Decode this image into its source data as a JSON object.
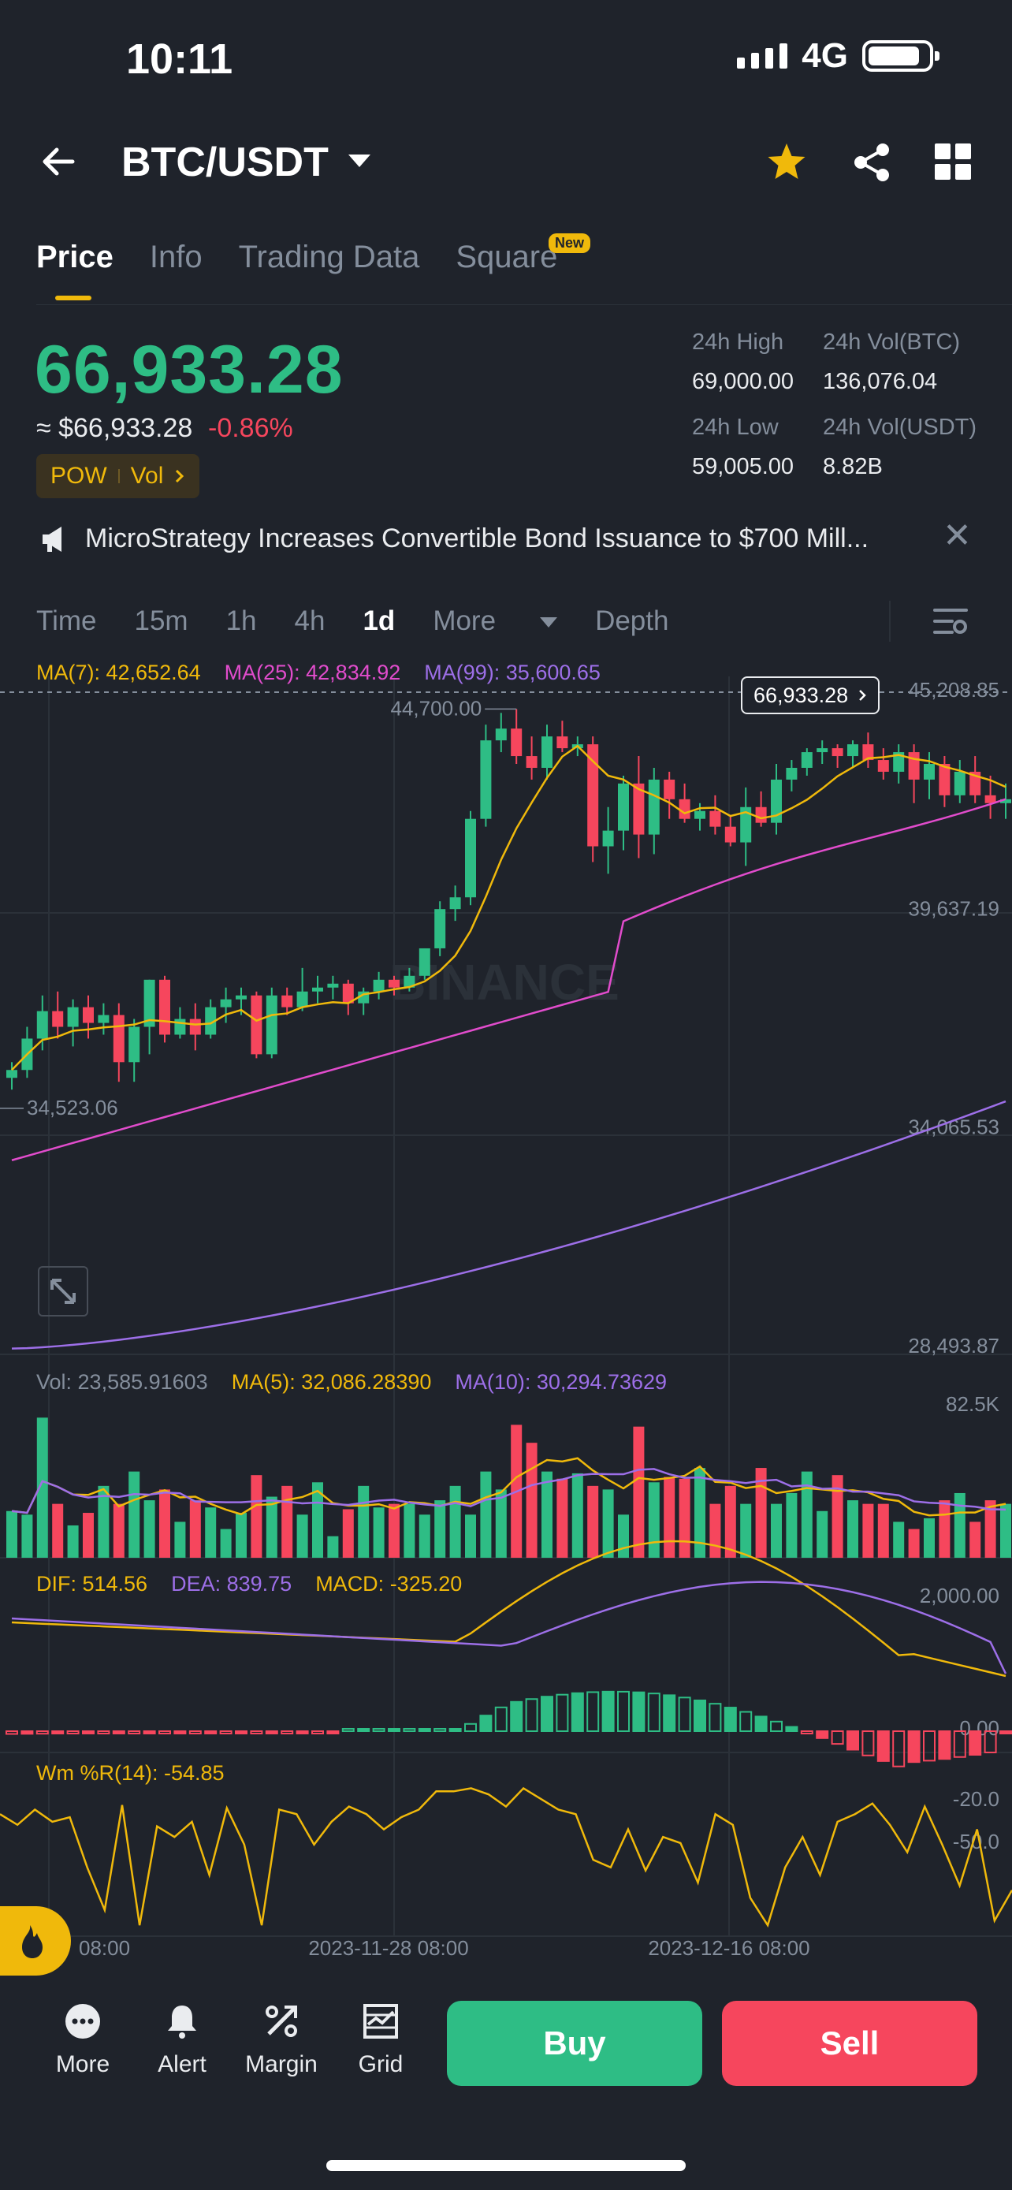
{
  "status_bar": {
    "time": "10:11",
    "network": "4G"
  },
  "header": {
    "pair": "BTC/USDT"
  },
  "tabs": [
    {
      "label": "Price",
      "active": true
    },
    {
      "label": "Info"
    },
    {
      "label": "Trading Data"
    },
    {
      "label": "Square",
      "badge": "New"
    }
  ],
  "price": {
    "last": "66,933.28",
    "usd": "≈ $66,933.28",
    "change": "-0.86%",
    "badge_a": "POW",
    "badge_b": "Vol"
  },
  "stats": {
    "high_label": "24h High",
    "high": "69,000.00",
    "low_label": "24h Low",
    "low": "59,005.00",
    "vol_btc_label": "24h Vol(BTC)",
    "vol_btc": "136,076.04",
    "vol_usdt_label": "24h Vol(USDT)",
    "vol_usdt": "8.82B"
  },
  "news": {
    "text": "MicroStrategy Increases Convertible Bond Issuance to $700 Mill..."
  },
  "intervals": {
    "time": "Time",
    "i15m": "15m",
    "i1h": "1h",
    "i4h": "4h",
    "i1d": "1d",
    "more": "More",
    "depth": "Depth",
    "selected": "1d"
  },
  "colors": {
    "up": "#2ebd85",
    "down": "#f6465d",
    "accent": "#f0b90b",
    "ma7": "#f0b90b",
    "ma25": "#e14ccc",
    "ma99": "#9d6fe8",
    "bg": "#1f232b"
  },
  "icons": [
    "back-arrow-icon",
    "caret-down-icon",
    "star-icon",
    "share-icon",
    "grid-icon",
    "megaphone-icon",
    "close-icon",
    "chart-settings-icon",
    "expand-icon",
    "fire-icon",
    "more-icon",
    "alert-bell-icon",
    "margin-icon",
    "grid-bot-icon"
  ],
  "chart_data": {
    "type": "candlestick",
    "watermark": "BINANCE",
    "ma_legend": {
      "ma7": "MA(7): 42,652.64",
      "ma25": "MA(25): 42,834.92",
      "ma99": "MA(99): 35,600.65"
    },
    "y_ticks": [
      "45,208.85",
      "39,637.19",
      "34,065.53",
      "28,493.87"
    ],
    "last_price_tag": "66,933.28",
    "high_marker": "44,700.00",
    "low_marker": "34,523.06",
    "x_ticks": [
      "08:00",
      "2023-11-28 08:00",
      "2023-12-16 08:00"
    ],
    "candles": [
      [
        35300,
        35700,
        35000,
        35500
      ],
      [
        35500,
        36600,
        35300,
        36300
      ],
      [
        36300,
        37400,
        36000,
        37000
      ],
      [
        37000,
        37500,
        36300,
        36600
      ],
      [
        36600,
        37300,
        36100,
        37100
      ],
      [
        37100,
        37400,
        36300,
        36700
      ],
      [
        36700,
        37200,
        36400,
        36900
      ],
      [
        36900,
        37200,
        35200,
        35700
      ],
      [
        35700,
        36800,
        35200,
        36600
      ],
      [
        36600,
        37800,
        35900,
        37800
      ],
      [
        37800,
        37900,
        36200,
        36400
      ],
      [
        36400,
        37100,
        36300,
        36800
      ],
      [
        36800,
        37200,
        36000,
        36400
      ],
      [
        36400,
        37300,
        36300,
        37100
      ],
      [
        37100,
        37600,
        36700,
        37300
      ],
      [
        37300,
        37600,
        36900,
        37400
      ],
      [
        37400,
        37500,
        35800,
        35900
      ],
      [
        35900,
        37600,
        35800,
        37400
      ],
      [
        37400,
        37600,
        36900,
        37100
      ],
      [
        37100,
        38100,
        37000,
        37500
      ],
      [
        37500,
        37900,
        37200,
        37600
      ],
      [
        37600,
        37900,
        37300,
        37700
      ],
      [
        37700,
        37800,
        36900,
        37200
      ],
      [
        37200,
        37600,
        36900,
        37500
      ],
      [
        37500,
        38000,
        37300,
        37800
      ],
      [
        37800,
        37900,
        37400,
        37600
      ],
      [
        37600,
        38100,
        37500,
        37900
      ],
      [
        37900,
        38600,
        37800,
        38600
      ],
      [
        38600,
        39800,
        38400,
        39600
      ],
      [
        39600,
        40200,
        39300,
        39900
      ],
      [
        39900,
        42100,
        39700,
        41900
      ],
      [
        41900,
        44300,
        41700,
        43900
      ],
      [
        43900,
        44600,
        43600,
        44200
      ],
      [
        44200,
        44700,
        43300,
        43500
      ],
      [
        43500,
        44000,
        42900,
        43200
      ],
      [
        43200,
        44300,
        42900,
        44000
      ],
      [
        44000,
        44400,
        43600,
        43700
      ],
      [
        43700,
        44000,
        43500,
        43800
      ],
      [
        43800,
        44000,
        40800,
        41200
      ],
      [
        41200,
        42200,
        40500,
        41600
      ],
      [
        41600,
        43000,
        41100,
        42800
      ],
      [
        42800,
        43500,
        40900,
        41500
      ],
      [
        41500,
        43200,
        41000,
        42900
      ],
      [
        42900,
        43100,
        41900,
        42400
      ],
      [
        42400,
        42800,
        41800,
        41900
      ],
      [
        41900,
        42300,
        41600,
        42100
      ],
      [
        42100,
        42500,
        41500,
        41700
      ],
      [
        41700,
        42000,
        41200,
        41300
      ],
      [
        41300,
        42700,
        40700,
        42200
      ],
      [
        42200,
        42600,
        41700,
        41800
      ],
      [
        41800,
        43300,
        41500,
        42900
      ],
      [
        42900,
        43400,
        42600,
        43200
      ],
      [
        43200,
        43700,
        43000,
        43600
      ],
      [
        43600,
        43900,
        43300,
        43700
      ],
      [
        43700,
        43800,
        43200,
        43500
      ],
      [
        43500,
        43900,
        43200,
        43800
      ],
      [
        43800,
        44100,
        43200,
        43400
      ],
      [
        43400,
        43700,
        42900,
        43100
      ],
      [
        43100,
        43800,
        42800,
        43600
      ],
      [
        43600,
        43800,
        42300,
        42900
      ],
      [
        42900,
        43600,
        42400,
        43300
      ],
      [
        43300,
        43500,
        42200,
        42500
      ],
      [
        42500,
        43400,
        42300,
        43100
      ],
      [
        43100,
        43500,
        42300,
        42500
      ],
      [
        42500,
        43000,
        41900,
        42300
      ],
      [
        42300,
        42800,
        41900,
        42400
      ]
    ],
    "volume_legend": {
      "vol": "Vol: 23,585.91603",
      "ma5": "MA(5): 32,086.28390",
      "ma10": "MA(10): 30,294.73629"
    },
    "volume_axis": "82.5K",
    "volumes": [
      26,
      24,
      78,
      30,
      18,
      25,
      40,
      30,
      48,
      32,
      38,
      20,
      32,
      28,
      16,
      25,
      46,
      34,
      40,
      24,
      42,
      12,
      27,
      40,
      28,
      30,
      30,
      24,
      32,
      40,
      24,
      48,
      38,
      74,
      64,
      48,
      44,
      47,
      40,
      38,
      24,
      73,
      42,
      45,
      44,
      50,
      30,
      40,
      30,
      50,
      30,
      36,
      48,
      26,
      46,
      32,
      30,
      30,
      20,
      16,
      22,
      32,
      36,
      20,
      32,
      30
    ],
    "macd_legend": {
      "dif": "DIF: 514.56",
      "dea": "DEA: 839.75",
      "macd": "MACD: -325.20"
    },
    "macd_ticks": [
      "2,000.00",
      "0.00"
    ],
    "wr_legend": "Wm %R(14): -54.85",
    "wr_ticks": [
      "-20.0",
      "-50.0"
    ],
    "wr_values": [
      -25,
      -32,
      -22,
      -30,
      -27,
      -60,
      -88,
      -19,
      -98,
      -33,
      -40,
      -30,
      -65,
      -21,
      -45,
      -98,
      -22,
      -25,
      -45,
      -30,
      -20,
      -25,
      -35,
      -27,
      -22,
      -10,
      -10,
      -8,
      -12,
      -20,
      -8,
      -15,
      -22,
      -25,
      -55,
      -60,
      -35,
      -62,
      -40,
      -44,
      -70,
      -25,
      -32,
      -80,
      -98,
      -60,
      -40,
      -65,
      -30,
      -25,
      -18,
      -32,
      -50,
      -20,
      -45,
      -72,
      -35,
      -95,
      -75
    ]
  },
  "bottom_bar": {
    "more": "More",
    "alert": "Alert",
    "margin": "Margin",
    "grid": "Grid",
    "buy": "Buy",
    "sell": "Sell"
  }
}
